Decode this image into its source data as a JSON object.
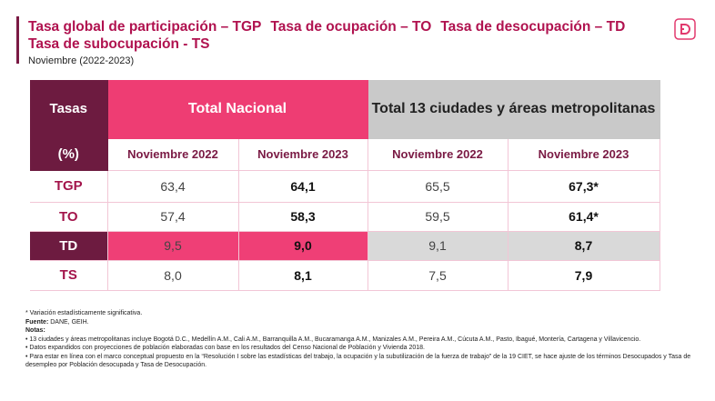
{
  "header": {
    "title_items": [
      "Tasa global de participación – TGP",
      "Tasa de ocupación – TO",
      "Tasa de desocupación – TD",
      "Tasa de subocupación - TS"
    ],
    "subtitle": "Noviembre (2022-2023)"
  },
  "table": {
    "corner": [
      "Tasas",
      "(%)"
    ],
    "groups": [
      "Total Nacional",
      "Total 13 ciudades y áreas metropolitanas"
    ],
    "subheaders": [
      "Noviembre 2022",
      "Noviembre 2023",
      "Noviembre 2022",
      "Noviembre 2023"
    ],
    "rows": [
      [
        "TGP",
        "63,4",
        "64,1",
        "65,5",
        "67,3*"
      ],
      [
        "TO",
        "57,4",
        "58,3",
        "59,5",
        "61,4*"
      ],
      [
        "TD",
        "9,5",
        "9,0",
        "9,1",
        "8,7"
      ],
      [
        "TS",
        "8,0",
        "8,1",
        "7,5",
        "7,9"
      ]
    ]
  },
  "notes": {
    "significance": "* Variación estadísticamente significativa.",
    "source_label": "Fuente:",
    "source": "DANE, GEIH.",
    "notes_label": "Notas:",
    "items": [
      "13 ciudades y áreas metropolitanas incluye Bogotá D.C., Medellín A.M., Cali A.M., Barranquilla A.M., Bucaramanga A.M., Manizales A.M., Pereira A.M., Cúcuta A.M., Pasto, Ibagué, Montería, Cartagena y Villavicencio.",
      "Datos expandidos con proyecciones de población elaboradas con base en los resultados del Censo Nacional de Población y Vivienda 2018.",
      "Para estar en línea con el marco conceptual propuesto en la “Resolución I sobre las estadísticas del trabajo, la ocupación y la subutilización de la fuerza de trabajo” de la 19 CIET, se hace ajuste de los términos Desocupados y Tasa de desempleo por Población desocupada y Tasa de Desocupación."
    ]
  }
}
